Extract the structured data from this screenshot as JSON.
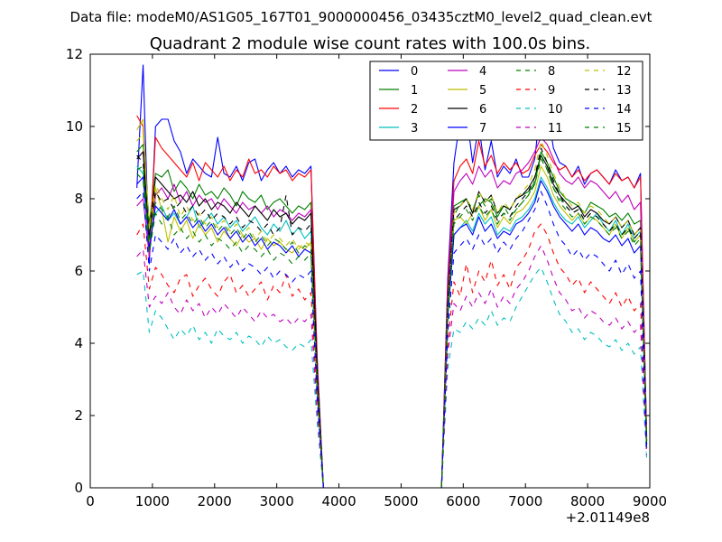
{
  "suptitle": "Data file: modeM0/AS1G05_167T01_9000000456_03435cztM0_level2_quad_clean.evt",
  "chart_data": {
    "type": "line",
    "title": "Quadrant 2 module wise count rates with 100.0s bins.",
    "xlabel": "",
    "ylabel": "",
    "x_offset_label": "+2.01149e8",
    "xlim": [
      0,
      9000
    ],
    "ylim": [
      0,
      12
    ],
    "xticks": [
      0,
      1000,
      2000,
      3000,
      4000,
      5000,
      6000,
      7000,
      8000,
      9000
    ],
    "xtick_labels": [
      "0",
      "1000",
      "2000",
      "3000",
      "4000",
      "5000",
      "6000",
      "7000",
      "8000",
      "9000"
    ],
    "yticks": [
      0,
      2,
      4,
      6,
      8,
      10,
      12
    ],
    "ytick_labels": [
      "0",
      "2",
      "4",
      "6",
      "8",
      "10",
      "12"
    ],
    "grid": false,
    "legend_position": "top-right",
    "legend_columns": 4,
    "x": [
      750,
      850,
      950,
      1050,
      1150,
      1250,
      1350,
      1450,
      1550,
      1650,
      1750,
      1850,
      1950,
      2050,
      2150,
      2250,
      2350,
      2450,
      2550,
      2650,
      2750,
      2850,
      2950,
      3050,
      3150,
      3250,
      3350,
      3450,
      3550,
      3650,
      3750,
      5650,
      5750,
      5850,
      5950,
      6050,
      6150,
      6250,
      6350,
      6450,
      6550,
      6650,
      6750,
      6850,
      6950,
      7050,
      7150,
      7250,
      7350,
      7450,
      7550,
      7650,
      7750,
      7850,
      7950,
      8050,
      8150,
      8250,
      8350,
      8450,
      8550,
      8650,
      8750,
      8850,
      8950
    ],
    "series": [
      {
        "name": "0",
        "color": "#0000ff",
        "dash": "solid",
        "values": [
          8.3,
          11.7,
          6.2,
          10.0,
          10.2,
          10.2,
          9.6,
          9.3,
          8.7,
          9.1,
          8.9,
          8.7,
          8.6,
          9.7,
          8.7,
          8.6,
          8.9,
          8.5,
          9.0,
          9.1,
          8.5,
          8.8,
          9.0,
          8.7,
          8.9,
          8.6,
          8.8,
          8.7,
          8.9,
          3.6,
          0.0,
          0.0,
          5.8,
          9.0,
          10.2,
          10.4,
          9.0,
          10.0,
          8.8,
          9.6,
          8.6,
          8.9,
          8.7,
          9.1,
          8.6,
          8.6,
          9.1,
          10.7,
          10.5,
          9.4,
          9.0,
          8.9,
          8.6,
          8.9,
          8.4,
          8.7,
          8.8,
          8.6,
          8.4,
          8.8,
          8.5,
          8.6,
          8.3,
          8.7,
          1.4
        ]
      },
      {
        "name": "1",
        "color": "#008000",
        "dash": "solid",
        "values": [
          9.3,
          9.5,
          7.3,
          8.7,
          8.6,
          8.8,
          8.2,
          8.5,
          8.3,
          8.0,
          8.4,
          8.1,
          8.2,
          8.0,
          8.3,
          8.1,
          7.8,
          8.2,
          8.0,
          7.9,
          8.1,
          7.7,
          7.9,
          8.0,
          7.8,
          7.6,
          7.8,
          7.7,
          7.9,
          3.3,
          0.0,
          0.0,
          5.2,
          7.8,
          7.9,
          8.0,
          7.6,
          7.8,
          8.0,
          7.9,
          7.5,
          7.8,
          7.7,
          8.0,
          8.1,
          8.2,
          8.4,
          9.3,
          9.0,
          8.6,
          8.2,
          8.0,
          7.9,
          7.8,
          7.6,
          7.9,
          7.8,
          7.7,
          7.5,
          7.6,
          7.4,
          7.6,
          7.3,
          7.4,
          1.3
        ]
      },
      {
        "name": "2",
        "color": "#ff0000",
        "dash": "solid",
        "values": [
          10.3,
          10.0,
          6.5,
          9.7,
          9.4,
          9.2,
          9.0,
          8.8,
          8.6,
          9.0,
          8.5,
          9.0,
          8.8,
          8.6,
          8.9,
          8.5,
          8.8,
          8.6,
          9.1,
          8.7,
          8.8,
          8.6,
          8.9,
          8.7,
          8.8,
          8.5,
          8.7,
          8.6,
          8.8,
          3.5,
          0.0,
          0.0,
          5.6,
          8.5,
          8.9,
          9.1,
          8.7,
          9.6,
          8.9,
          9.2,
          8.7,
          9.0,
          8.8,
          9.0,
          8.7,
          8.8,
          9.2,
          9.5,
          9.3,
          9.0,
          8.8,
          8.9,
          8.6,
          8.8,
          8.5,
          8.7,
          8.8,
          8.6,
          8.4,
          8.7,
          8.5,
          8.6,
          8.3,
          8.6,
          1.4
        ]
      },
      {
        "name": "3",
        "color": "#00bfbf",
        "dash": "solid",
        "values": [
          8.9,
          8.7,
          7.0,
          7.6,
          7.8,
          7.4,
          7.6,
          7.3,
          7.5,
          7.8,
          7.2,
          7.4,
          7.6,
          7.3,
          7.5,
          7.2,
          7.4,
          7.1,
          7.3,
          7.5,
          7.2,
          7.0,
          7.3,
          7.1,
          7.4,
          7.0,
          7.2,
          6.9,
          7.1,
          3.0,
          0.0,
          0.0,
          4.8,
          7.0,
          7.2,
          7.4,
          7.1,
          7.6,
          7.3,
          7.5,
          7.0,
          7.2,
          7.1,
          7.4,
          7.5,
          7.7,
          8.0,
          8.6,
          8.3,
          7.9,
          7.6,
          7.4,
          7.3,
          7.5,
          7.2,
          7.4,
          7.6,
          7.3,
          7.1,
          7.4,
          7.0,
          7.3,
          6.9,
          7.1,
          1.2
        ]
      },
      {
        "name": "4",
        "color": "#bf00bf",
        "dash": "solid",
        "values": [
          7.8,
          8.0,
          6.4,
          8.1,
          8.3,
          8.0,
          8.4,
          7.9,
          8.2,
          7.8,
          8.1,
          7.9,
          8.0,
          7.7,
          8.0,
          7.8,
          7.6,
          7.9,
          7.7,
          7.8,
          7.6,
          7.8,
          7.5,
          7.7,
          7.6,
          7.4,
          7.6,
          7.5,
          7.7,
          3.2,
          0.0,
          0.0,
          5.3,
          8.2,
          8.5,
          8.7,
          8.4,
          8.9,
          8.6,
          8.8,
          8.3,
          8.5,
          8.4,
          8.7,
          8.8,
          9.0,
          9.3,
          9.7,
          9.5,
          9.1,
          8.7,
          8.5,
          8.4,
          8.6,
          8.3,
          8.5,
          8.4,
          8.2,
          8.0,
          8.2,
          7.9,
          8.1,
          7.7,
          7.9,
          1.3
        ]
      },
      {
        "name": "5",
        "color": "#bfbf00",
        "dash": "solid",
        "values": [
          9.9,
          10.2,
          6.8,
          8.3,
          7.7,
          6.8,
          7.5,
          7.1,
          7.4,
          6.9,
          7.3,
          7.0,
          7.2,
          6.8,
          7.1,
          6.9,
          6.7,
          7.0,
          6.8,
          6.9,
          6.6,
          6.9,
          6.7,
          6.8,
          6.6,
          6.5,
          6.7,
          6.6,
          6.8,
          2.9,
          0.0,
          0.0,
          4.9,
          7.4,
          7.5,
          7.3,
          7.6,
          7.8,
          7.4,
          7.7,
          7.2,
          7.5,
          7.3,
          7.6,
          7.7,
          7.9,
          8.2,
          8.9,
          8.6,
          8.1,
          7.8,
          7.6,
          7.4,
          7.6,
          7.3,
          7.5,
          7.4,
          7.2,
          7.0,
          7.3,
          6.9,
          7.2,
          6.8,
          7.0,
          1.2
        ]
      },
      {
        "name": "6",
        "color": "#000000",
        "dash": "solid",
        "values": [
          9.1,
          9.3,
          6.9,
          8.6,
          8.4,
          8.2,
          8.0,
          8.1,
          7.9,
          8.2,
          7.8,
          8.0,
          7.7,
          7.9,
          7.8,
          7.6,
          7.9,
          7.7,
          7.5,
          7.8,
          7.6,
          7.4,
          7.7,
          7.5,
          7.6,
          7.3,
          7.5,
          7.4,
          7.6,
          3.2,
          0.0,
          0.0,
          5.1,
          7.7,
          7.8,
          8.0,
          7.6,
          8.2,
          7.9,
          8.1,
          7.6,
          7.8,
          7.7,
          8.0,
          8.1,
          8.3,
          8.6,
          9.2,
          8.9,
          8.4,
          8.1,
          7.9,
          7.7,
          7.8,
          7.5,
          7.7,
          7.6,
          7.4,
          7.3,
          7.5,
          7.2,
          7.4,
          7.0,
          7.2,
          1.3
        ]
      },
      {
        "name": "7",
        "color": "#0000ff",
        "dash": "solid",
        "values": [
          8.4,
          8.6,
          6.6,
          7.8,
          7.6,
          7.4,
          7.7,
          7.3,
          7.5,
          7.2,
          7.4,
          7.1,
          7.3,
          7.0,
          7.2,
          6.9,
          7.1,
          6.8,
          7.0,
          6.7,
          6.9,
          6.6,
          6.8,
          6.7,
          6.5,
          6.7,
          6.4,
          6.6,
          6.5,
          2.8,
          0.0,
          0.0,
          4.7,
          7.0,
          7.2,
          7.3,
          7.0,
          7.5,
          7.1,
          7.3,
          6.9,
          7.1,
          7.0,
          7.3,
          7.4,
          7.6,
          7.9,
          8.5,
          8.2,
          7.8,
          7.5,
          7.3,
          7.1,
          7.3,
          7.0,
          7.2,
          7.1,
          6.9,
          6.8,
          7.0,
          6.7,
          6.9,
          6.5,
          6.7,
          1.1
        ]
      },
      {
        "name": "8",
        "color": "#008000",
        "dash": "dashed",
        "values": [
          8.7,
          8.5,
          6.5,
          7.6,
          7.3,
          7.5,
          7.0,
          7.2,
          6.9,
          7.1,
          6.8,
          7.0,
          6.7,
          6.9,
          6.8,
          6.6,
          6.8,
          6.5,
          6.7,
          6.6,
          6.4,
          6.6,
          6.3,
          6.5,
          6.4,
          6.2,
          6.4,
          6.3,
          6.5,
          2.7,
          0.0,
          0.0,
          4.6,
          7.5,
          7.9,
          8.0,
          7.7,
          8.1,
          7.8,
          8.0,
          7.6,
          7.8,
          7.5,
          7.7,
          7.9,
          8.1,
          8.4,
          9.1,
          8.8,
          8.3,
          8.0,
          7.8,
          7.6,
          7.7,
          7.4,
          7.6,
          7.5,
          7.3,
          7.1,
          7.3,
          7.0,
          7.2,
          6.8,
          7.0,
          1.2
        ]
      },
      {
        "name": "9",
        "color": "#ff0000",
        "dash": "dashed",
        "values": [
          7.0,
          7.3,
          5.5,
          6.1,
          5.9,
          5.6,
          5.4,
          5.8,
          5.9,
          5.3,
          5.6,
          5.8,
          5.5,
          5.3,
          5.7,
          5.9,
          5.4,
          5.6,
          5.3,
          5.5,
          5.7,
          5.2,
          5.6,
          5.4,
          5.9,
          5.3,
          5.5,
          5.2,
          5.4,
          2.3,
          0.0,
          0.0,
          4.0,
          5.7,
          5.3,
          6.2,
          5.4,
          6.0,
          5.7,
          6.3,
          5.6,
          5.9,
          5.5,
          6.1,
          6.3,
          6.6,
          7.1,
          7.3,
          7.0,
          6.5,
          6.1,
          5.9,
          5.6,
          5.8,
          5.4,
          5.7,
          5.5,
          5.3,
          5.1,
          5.4,
          5.0,
          5.3,
          4.9,
          5.1,
          1.0
        ]
      },
      {
        "name": "10",
        "color": "#00bfbf",
        "dash": "dashed",
        "values": [
          5.9,
          6.0,
          4.3,
          4.9,
          4.7,
          4.4,
          4.1,
          4.4,
          4.2,
          4.5,
          4.1,
          4.3,
          4.0,
          4.4,
          4.2,
          4.1,
          4.3,
          4.0,
          4.2,
          4.1,
          3.9,
          4.2,
          4.0,
          4.1,
          3.9,
          3.8,
          4.0,
          3.9,
          4.1,
          1.8,
          0.0,
          0.0,
          3.3,
          4.4,
          4.3,
          4.6,
          4.4,
          4.7,
          4.5,
          4.9,
          4.5,
          4.7,
          4.6,
          5.0,
          5.3,
          5.6,
          5.9,
          6.1,
          5.7,
          5.2,
          4.8,
          4.6,
          4.3,
          4.4,
          4.1,
          4.3,
          4.2,
          4.0,
          3.9,
          4.1,
          3.8,
          4.0,
          3.7,
          3.9,
          0.8
        ]
      },
      {
        "name": "11",
        "color": "#bf00bf",
        "dash": "dashed",
        "values": [
          6.4,
          6.6,
          5.0,
          5.3,
          5.1,
          5.4,
          5.0,
          4.8,
          5.2,
          4.9,
          5.1,
          4.7,
          5.0,
          4.8,
          5.1,
          4.9,
          4.7,
          5.0,
          4.8,
          4.6,
          4.9,
          4.7,
          4.8,
          4.6,
          4.7,
          4.5,
          4.7,
          4.6,
          4.8,
          2.1,
          0.0,
          0.0,
          3.7,
          5.1,
          4.9,
          5.3,
          5.0,
          5.4,
          5.1,
          5.5,
          5.0,
          5.3,
          5.1,
          5.5,
          5.7,
          6.0,
          6.4,
          6.7,
          6.3,
          5.8,
          5.4,
          5.2,
          4.9,
          5.0,
          4.7,
          4.9,
          4.8,
          4.6,
          4.5,
          4.7,
          4.4,
          4.6,
          4.3,
          4.5,
          0.9
        ]
      },
      {
        "name": "12",
        "color": "#bfbf00",
        "dash": "dashed",
        "values": [
          9.6,
          9.8,
          7.2,
          8.4,
          8.0,
          7.7,
          8.1,
          7.5,
          7.8,
          7.4,
          7.6,
          7.3,
          7.5,
          7.2,
          7.4,
          7.1,
          7.3,
          7.0,
          7.2,
          6.9,
          7.1,
          6.8,
          7.0,
          6.9,
          6.7,
          6.9,
          6.6,
          6.8,
          6.7,
          2.9,
          0.0,
          0.0,
          5.0,
          7.6,
          7.8,
          8.0,
          7.7,
          8.2,
          7.9,
          8.1,
          7.6,
          7.9,
          7.7,
          8.0,
          8.2,
          8.4,
          8.8,
          9.6,
          9.2,
          8.7,
          8.3,
          8.0,
          7.8,
          7.9,
          7.6,
          7.8,
          7.7,
          7.5,
          7.3,
          7.5,
          7.2,
          7.4,
          7.0,
          7.2,
          1.2
        ]
      },
      {
        "name": "13",
        "color": "#000000",
        "dash": "dashed",
        "values": [
          9.2,
          9.0,
          7.0,
          8.2,
          7.9,
          8.0,
          7.7,
          7.9,
          7.6,
          7.8,
          7.5,
          7.7,
          7.4,
          7.6,
          7.5,
          7.3,
          7.5,
          7.2,
          7.4,
          7.3,
          7.1,
          7.3,
          7.0,
          7.2,
          8.1,
          7.0,
          7.2,
          7.1,
          7.3,
          3.1,
          0.0,
          0.0,
          5.0,
          7.4,
          7.6,
          7.8,
          7.5,
          7.9,
          7.6,
          7.8,
          7.4,
          7.6,
          7.5,
          7.8,
          8.0,
          8.2,
          8.6,
          9.4,
          9.0,
          8.5,
          8.1,
          7.8,
          7.6,
          7.7,
          7.4,
          7.6,
          7.5,
          7.3,
          7.1,
          7.3,
          7.0,
          7.2,
          6.9,
          7.1,
          1.2
        ]
      },
      {
        "name": "14",
        "color": "#0000ff",
        "dash": "dashed",
        "values": [
          8.0,
          8.2,
          6.0,
          7.0,
          6.8,
          6.6,
          6.9,
          6.5,
          6.7,
          6.4,
          6.6,
          6.3,
          6.5,
          6.2,
          6.4,
          6.1,
          6.3,
          6.0,
          6.2,
          6.1,
          5.9,
          6.1,
          5.8,
          6.0,
          5.9,
          5.7,
          5.9,
          5.8,
          6.0,
          2.5,
          0.0,
          0.0,
          4.3,
          6.5,
          6.7,
          6.9,
          6.6,
          7.0,
          6.7,
          6.9,
          6.5,
          6.8,
          6.6,
          6.9,
          7.1,
          7.4,
          7.7,
          8.2,
          7.8,
          7.3,
          6.9,
          6.7,
          6.4,
          6.6,
          6.3,
          6.5,
          6.4,
          6.2,
          6.0,
          6.3,
          5.9,
          6.2,
          5.8,
          6.0,
          1.0
        ]
      },
      {
        "name": "15",
        "color": "#008000",
        "dash": "dashed",
        "values": [
          8.8,
          8.9,
          6.8,
          7.9,
          7.7,
          7.5,
          7.8,
          7.4,
          7.6,
          7.3,
          7.5,
          7.2,
          7.4,
          7.1,
          7.3,
          7.0,
          7.2,
          6.9,
          7.1,
          6.8,
          7.0,
          6.7,
          6.9,
          6.8,
          6.6,
          6.8,
          6.5,
          6.7,
          6.6,
          2.8,
          0.0,
          0.0,
          4.9,
          7.3,
          7.5,
          7.7,
          7.4,
          7.8,
          7.5,
          7.7,
          7.3,
          7.6,
          7.4,
          7.7,
          7.9,
          8.1,
          8.5,
          9.2,
          8.8,
          8.3,
          7.9,
          7.7,
          7.5,
          7.6,
          7.3,
          7.5,
          7.4,
          7.2,
          7.0,
          7.2,
          6.9,
          7.1,
          6.7,
          6.9,
          1.1
        ]
      }
    ]
  }
}
